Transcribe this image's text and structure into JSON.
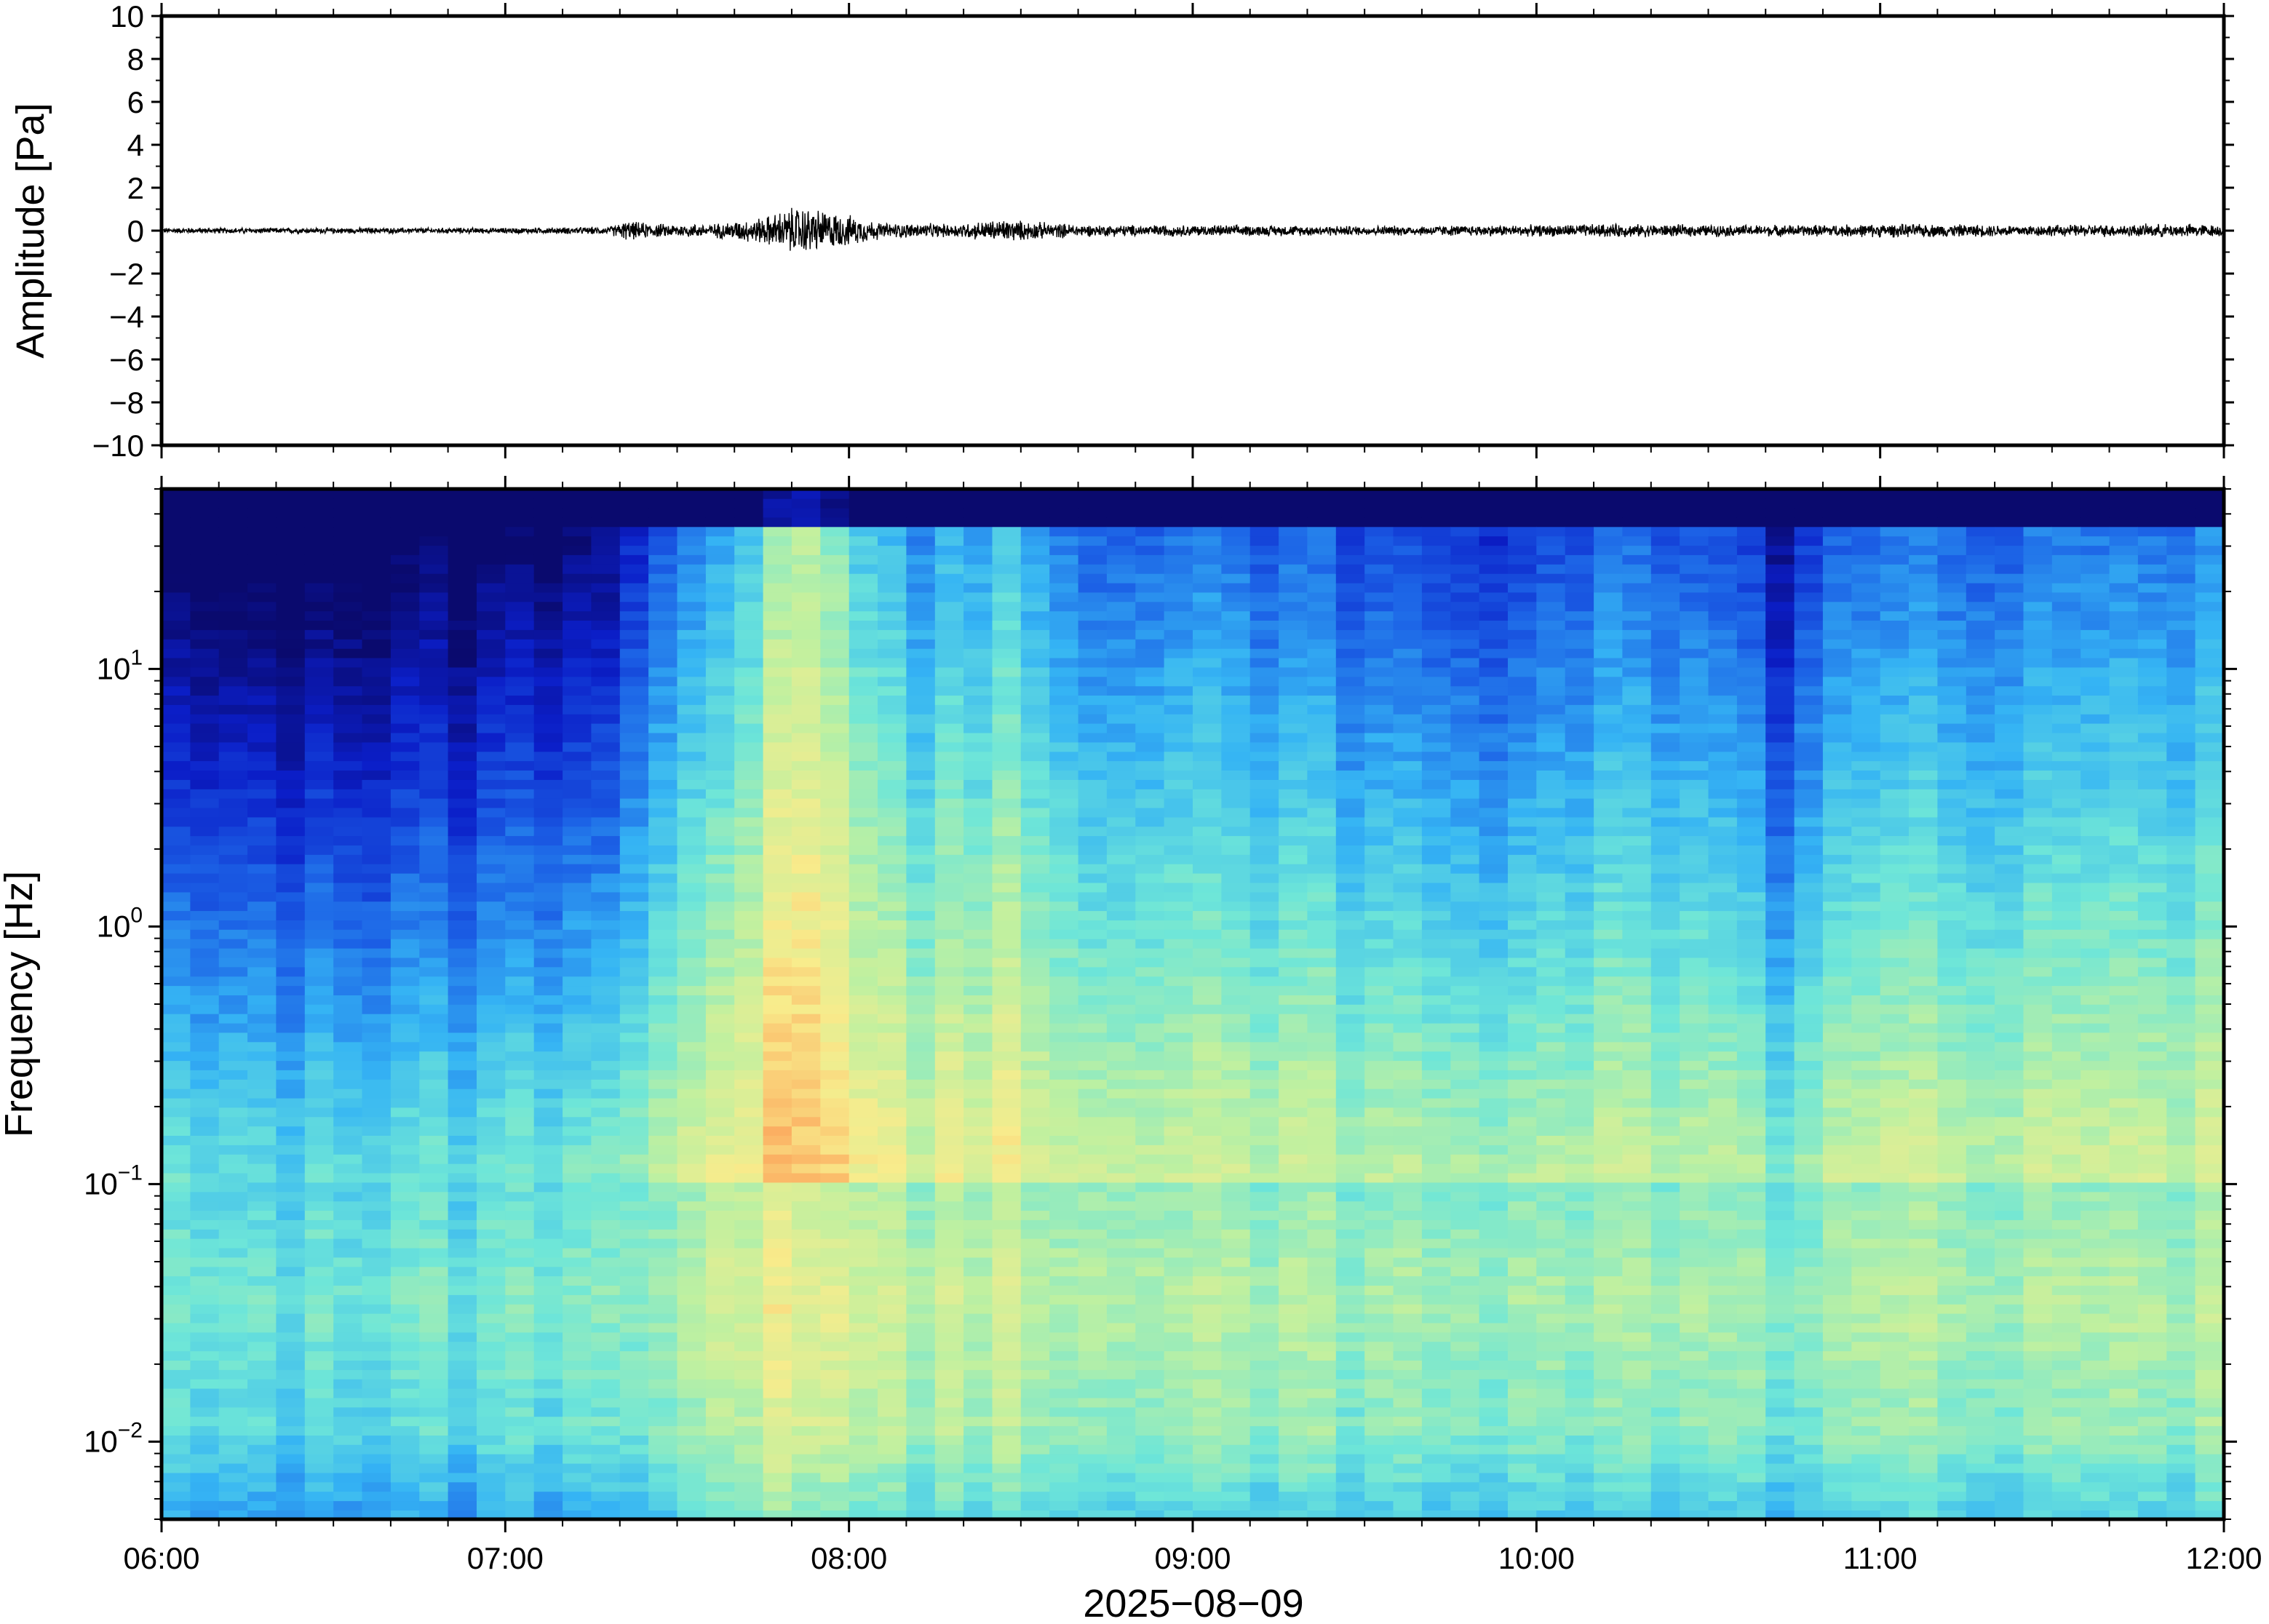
{
  "chart_data": [
    {
      "type": "line",
      "panel": "waveform",
      "ylabel": "Amplitude [Pa]",
      "ylim": [
        -10,
        10
      ],
      "yticks": [
        10,
        8,
        6,
        4,
        2,
        0,
        -2,
        -4,
        -6,
        -8,
        -10
      ],
      "ytick_labels": [
        "10",
        "8",
        "6",
        "4",
        "2",
        "0",
        "−2",
        "−4",
        "−6",
        "−8",
        "−10"
      ],
      "xlim": [
        "06:00",
        "12:00"
      ],
      "line_color": "#000000",
      "envelope": {
        "time_hours": [
          6.0,
          6.5,
          7.0,
          7.3,
          7.35,
          7.45,
          7.6,
          7.75,
          7.85,
          7.92,
          8.0,
          8.1,
          8.3,
          8.45,
          8.55,
          8.7,
          9.0,
          9.5,
          10.0,
          10.2,
          10.5,
          10.8,
          11.0,
          11.5,
          11.9,
          12.0
        ],
        "amplitude_pa": [
          0.15,
          0.15,
          0.15,
          0.2,
          0.5,
          0.35,
          0.35,
          0.7,
          1.3,
          1.1,
          0.8,
          0.4,
          0.35,
          0.6,
          0.45,
          0.3,
          0.3,
          0.25,
          0.3,
          0.35,
          0.3,
          0.3,
          0.35,
          0.3,
          0.35,
          0.3
        ]
      }
    },
    {
      "type": "heatmap",
      "panel": "spectrogram",
      "ylabel": "Frequency [Hz]",
      "yscale": "log",
      "ylim": [
        0.005,
        50
      ],
      "yticks": [
        0.01,
        0.1,
        1,
        10
      ],
      "ytick_labels": [
        {
          "base": "10",
          "exp": "−2"
        },
        {
          "base": "10",
          "exp": "−1"
        },
        {
          "base": "10",
          "exp": "0"
        },
        {
          "base": "10",
          "exp": "1"
        }
      ],
      "xlabel": "2025−08−09",
      "xlim": [
        "06:00",
        "12:00"
      ],
      "xtick_labels": [
        "06:00",
        "07:00",
        "08:00",
        "09:00",
        "10:00",
        "11:00",
        "12:00"
      ],
      "colormap": [
        "#0a0a6e",
        "#0b1ec8",
        "#1c62e6",
        "#35b4f4",
        "#6ee6d8",
        "#bff0a0",
        "#f8ec8c",
        "#fca45a",
        "#f45050"
      ],
      "energy_profile": {
        "time_hours": [
          6.0,
          6.5,
          7.0,
          7.3,
          7.4,
          7.5,
          7.65,
          7.8,
          7.9,
          8.0,
          8.2,
          8.5,
          8.7,
          9.0,
          9.5,
          9.95,
          10.2,
          10.6,
          10.7,
          10.8,
          11.0,
          11.5,
          12.0
        ],
        "relative_level": [
          0.0,
          0.0,
          0.05,
          0.08,
          0.28,
          0.34,
          0.38,
          0.6,
          0.72,
          0.5,
          0.38,
          0.46,
          0.3,
          0.34,
          0.28,
          0.22,
          0.34,
          0.26,
          0.1,
          0.28,
          0.32,
          0.34,
          0.36
        ]
      }
    }
  ]
}
